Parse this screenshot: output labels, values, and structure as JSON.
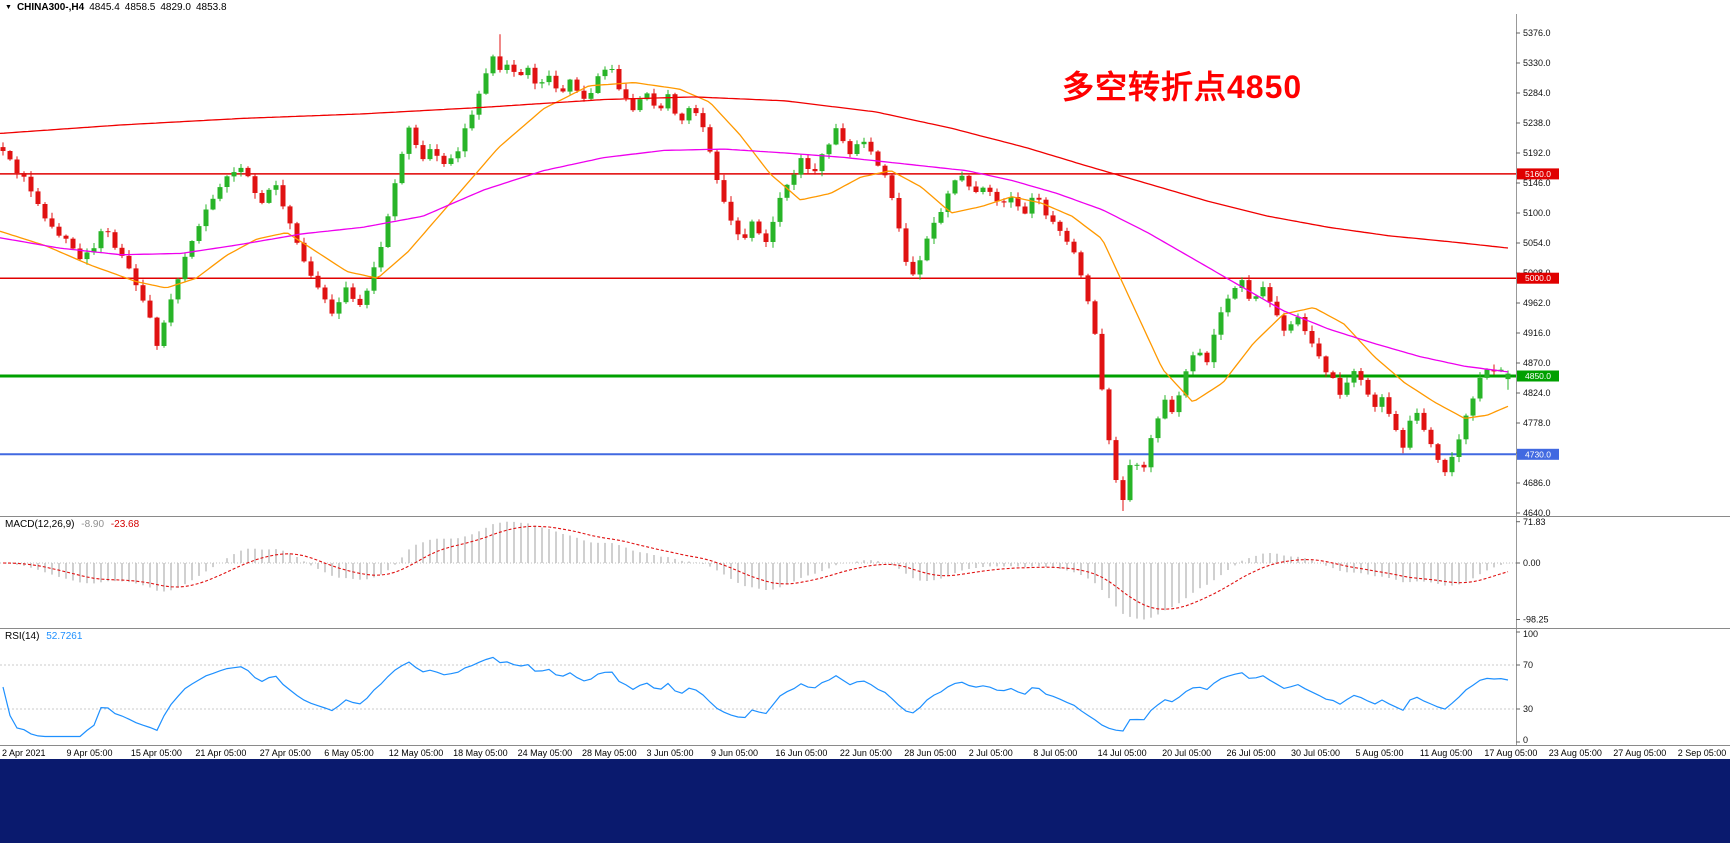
{
  "meta": {
    "background": "#ffffff",
    "taskbar_color": "#0a1a6e"
  },
  "header": {
    "dropdown_icon": "▼",
    "symbol": "CHINA300-,H4",
    "open": "4845.4",
    "high": "4858.5",
    "low": "4829.0",
    "close": "4853.8"
  },
  "annotation": {
    "text": "多空转折点4850",
    "color": "#ff0000"
  },
  "chart_data": {
    "type": "candlestick",
    "symbol": "CHINA300-",
    "timeframe": "H4",
    "current_bar": {
      "open": 4845.4,
      "high": 4858.5,
      "low": 4829.0,
      "close": 4853.8
    },
    "num_candles": 216,
    "up_color": "#28B428",
    "down_color": "#E01212",
    "price_axis": {
      "min": 4640.0,
      "max": 5376.0,
      "step": 46.0,
      "ticks": [
        "5376.0",
        "5330.0",
        "5284.0",
        "5238.0",
        "5192.0",
        "5146.0",
        "5100.0",
        "5054.0",
        "5008.0",
        "4962.0",
        "4916.0",
        "4870.0",
        "4824.0",
        "4778.0",
        "4732.0",
        "4686.0",
        "4640.0"
      ]
    },
    "horizontal_levels": [
      {
        "price": 5160.0,
        "label": "5160.0",
        "color": "#E00000",
        "line_width": 1.5
      },
      {
        "price": 5000.0,
        "label": "5000.0",
        "color": "#E00000",
        "line_width": 1.5
      },
      {
        "price": 4850.0,
        "label": "4850.0",
        "color": "#00A000",
        "line_width": 3
      },
      {
        "price": 4730.0,
        "label": "4730.0",
        "color": "#4169E1",
        "line_width": 2
      }
    ],
    "close_anchors": [
      [
        0.0,
        5195
      ],
      [
        0.01,
        5160
      ],
      [
        0.02,
        5135
      ],
      [
        0.03,
        5085
      ],
      [
        0.042,
        5060
      ],
      [
        0.052,
        5020
      ],
      [
        0.06,
        5050
      ],
      [
        0.068,
        5080
      ],
      [
        0.078,
        5035
      ],
      [
        0.088,
        4990
      ],
      [
        0.096,
        4950
      ],
      [
        0.103,
        4895
      ],
      [
        0.11,
        4950
      ],
      [
        0.12,
        5025
      ],
      [
        0.13,
        5080
      ],
      [
        0.14,
        5120
      ],
      [
        0.15,
        5160
      ],
      [
        0.16,
        5170
      ],
      [
        0.17,
        5110
      ],
      [
        0.18,
        5150
      ],
      [
        0.19,
        5090
      ],
      [
        0.2,
        5030
      ],
      [
        0.21,
        4980
      ],
      [
        0.22,
        4945
      ],
      [
        0.228,
        4990
      ],
      [
        0.236,
        4958
      ],
      [
        0.245,
        5000
      ],
      [
        0.255,
        5085
      ],
      [
        0.263,
        5175
      ],
      [
        0.27,
        5230
      ],
      [
        0.278,
        5185
      ],
      [
        0.286,
        5205
      ],
      [
        0.294,
        5165
      ],
      [
        0.302,
        5195
      ],
      [
        0.31,
        5245
      ],
      [
        0.318,
        5300
      ],
      [
        0.326,
        5345
      ],
      [
        0.331,
        5310
      ],
      [
        0.336,
        5340
      ],
      [
        0.342,
        5300
      ],
      [
        0.348,
        5330
      ],
      [
        0.355,
        5290
      ],
      [
        0.362,
        5320
      ],
      [
        0.37,
        5280
      ],
      [
        0.378,
        5305
      ],
      [
        0.386,
        5270
      ],
      [
        0.394,
        5300
      ],
      [
        0.402,
        5330
      ],
      [
        0.41,
        5290
      ],
      [
        0.418,
        5260
      ],
      [
        0.426,
        5290
      ],
      [
        0.434,
        5255
      ],
      [
        0.442,
        5280
      ],
      [
        0.45,
        5240
      ],
      [
        0.458,
        5265
      ],
      [
        0.466,
        5230
      ],
      [
        0.474,
        5160
      ],
      [
        0.482,
        5090
      ],
      [
        0.49,
        5055
      ],
      [
        0.498,
        5085
      ],
      [
        0.506,
        5055
      ],
      [
        0.514,
        5105
      ],
      [
        0.522,
        5150
      ],
      [
        0.53,
        5180
      ],
      [
        0.538,
        5160
      ],
      [
        0.546,
        5200
      ],
      [
        0.554,
        5230
      ],
      [
        0.562,
        5185
      ],
      [
        0.57,
        5210
      ],
      [
        0.578,
        5190
      ],
      [
        0.586,
        5155
      ],
      [
        0.594,
        5095
      ],
      [
        0.6,
        5030
      ],
      [
        0.606,
        5005
      ],
      [
        0.614,
        5060
      ],
      [
        0.622,
        5100
      ],
      [
        0.63,
        5145
      ],
      [
        0.638,
        5160
      ],
      [
        0.646,
        5125
      ],
      [
        0.654,
        5145
      ],
      [
        0.662,
        5105
      ],
      [
        0.67,
        5130
      ],
      [
        0.678,
        5100
      ],
      [
        0.686,
        5125
      ],
      [
        0.694,
        5095
      ],
      [
        0.702,
        5070
      ],
      [
        0.71,
        5045
      ],
      [
        0.718,
        5000
      ],
      [
        0.726,
        4905
      ],
      [
        0.732,
        4800
      ],
      [
        0.738,
        4705
      ],
      [
        0.744,
        4660
      ],
      [
        0.75,
        4730
      ],
      [
        0.757,
        4700
      ],
      [
        0.764,
        4762
      ],
      [
        0.772,
        4820
      ],
      [
        0.778,
        4790
      ],
      [
        0.785,
        4850
      ],
      [
        0.792,
        4895
      ],
      [
        0.799,
        4868
      ],
      [
        0.806,
        4930
      ],
      [
        0.815,
        4968
      ],
      [
        0.822,
        5000
      ],
      [
        0.83,
        4965
      ],
      [
        0.838,
        4990
      ],
      [
        0.845,
        4950
      ],
      [
        0.852,
        4920
      ],
      [
        0.86,
        4942
      ],
      [
        0.868,
        4902
      ],
      [
        0.875,
        4872
      ],
      [
        0.882,
        4850
      ],
      [
        0.889,
        4820
      ],
      [
        0.896,
        4858
      ],
      [
        0.903,
        4838
      ],
      [
        0.91,
        4800
      ],
      [
        0.917,
        4822
      ],
      [
        0.924,
        4778
      ],
      [
        0.93,
        4740
      ],
      [
        0.937,
        4800
      ],
      [
        0.944,
        4772
      ],
      [
        0.951,
        4742
      ],
      [
        0.958,
        4700
      ],
      [
        0.965,
        4735
      ],
      [
        0.972,
        4790
      ],
      [
        0.98,
        4840
      ],
      [
        0.988,
        4862
      ],
      [
        1.0,
        4853.8
      ]
    ],
    "moving_averages": [
      {
        "name": "ma-fast-orange",
        "color": "#FF9900",
        "anchors": [
          [
            0,
            5072
          ],
          [
            0.03,
            5050
          ],
          [
            0.06,
            5020
          ],
          [
            0.09,
            4995
          ],
          [
            0.11,
            4985
          ],
          [
            0.13,
            5000
          ],
          [
            0.15,
            5035
          ],
          [
            0.17,
            5060
          ],
          [
            0.19,
            5070
          ],
          [
            0.21,
            5040
          ],
          [
            0.23,
            5010
          ],
          [
            0.25,
            5000
          ],
          [
            0.27,
            5040
          ],
          [
            0.3,
            5120
          ],
          [
            0.33,
            5200
          ],
          [
            0.36,
            5260
          ],
          [
            0.39,
            5295
          ],
          [
            0.42,
            5300
          ],
          [
            0.45,
            5290
          ],
          [
            0.47,
            5270
          ],
          [
            0.49,
            5220
          ],
          [
            0.51,
            5160
          ],
          [
            0.53,
            5120
          ],
          [
            0.55,
            5130
          ],
          [
            0.57,
            5155
          ],
          [
            0.59,
            5165
          ],
          [
            0.61,
            5140
          ],
          [
            0.63,
            5100
          ],
          [
            0.65,
            5110
          ],
          [
            0.67,
            5125
          ],
          [
            0.69,
            5115
          ],
          [
            0.71,
            5095
          ],
          [
            0.73,
            5060
          ],
          [
            0.75,
            4960
          ],
          [
            0.77,
            4860
          ],
          [
            0.79,
            4810
          ],
          [
            0.81,
            4840
          ],
          [
            0.83,
            4900
          ],
          [
            0.85,
            4945
          ],
          [
            0.87,
            4955
          ],
          [
            0.89,
            4930
          ],
          [
            0.91,
            4880
          ],
          [
            0.93,
            4840
          ],
          [
            0.95,
            4810
          ],
          [
            0.97,
            4785
          ],
          [
            0.985,
            4790
          ],
          [
            1,
            4805
          ]
        ]
      },
      {
        "name": "ma-mid-magenta",
        "color": "#EE00EE",
        "anchors": [
          [
            0,
            5062
          ],
          [
            0.04,
            5046
          ],
          [
            0.08,
            5036
          ],
          [
            0.12,
            5038
          ],
          [
            0.16,
            5052
          ],
          [
            0.2,
            5068
          ],
          [
            0.24,
            5078
          ],
          [
            0.28,
            5095
          ],
          [
            0.32,
            5135
          ],
          [
            0.36,
            5165
          ],
          [
            0.4,
            5185
          ],
          [
            0.44,
            5196
          ],
          [
            0.48,
            5198
          ],
          [
            0.52,
            5192
          ],
          [
            0.56,
            5185
          ],
          [
            0.6,
            5175
          ],
          [
            0.64,
            5165
          ],
          [
            0.67,
            5150
          ],
          [
            0.7,
            5130
          ],
          [
            0.73,
            5105
          ],
          [
            0.76,
            5070
          ],
          [
            0.79,
            5030
          ],
          [
            0.82,
            4990
          ],
          [
            0.85,
            4950
          ],
          [
            0.88,
            4922
          ],
          [
            0.91,
            4900
          ],
          [
            0.94,
            4880
          ],
          [
            0.97,
            4865
          ],
          [
            1,
            4856
          ]
        ]
      },
      {
        "name": "ma-slow-red",
        "color": "#F00000",
        "anchors": [
          [
            0,
            5222
          ],
          [
            0.08,
            5235
          ],
          [
            0.16,
            5245
          ],
          [
            0.24,
            5252
          ],
          [
            0.32,
            5262
          ],
          [
            0.4,
            5274
          ],
          [
            0.46,
            5278
          ],
          [
            0.52,
            5272
          ],
          [
            0.58,
            5255
          ],
          [
            0.63,
            5230
          ],
          [
            0.68,
            5200
          ],
          [
            0.72,
            5172
          ],
          [
            0.76,
            5145
          ],
          [
            0.8,
            5118
          ],
          [
            0.84,
            5095
          ],
          [
            0.88,
            5078
          ],
          [
            0.92,
            5065
          ],
          [
            0.96,
            5056
          ],
          [
            1,
            5046
          ]
        ]
      }
    ],
    "macd": {
      "title": "MACD(12,26,9)",
      "value": "-8.90",
      "signal": "-23.68",
      "params": [
        12,
        26,
        9
      ],
      "axis_ticks": [
        "71.83",
        "0.00",
        "-98.25"
      ],
      "axis_max": 71.83,
      "axis_min": -98.25,
      "histogram_color": "#C0C0C0",
      "signal_color": "#E01212"
    },
    "rsi": {
      "title": "RSI(14)",
      "value": "52.7261",
      "period": 14,
      "axis_ticks": [
        "100",
        "70",
        "30",
        "0"
      ],
      "levels": [
        70,
        30
      ],
      "line_color": "#1E90FF"
    },
    "time_labels": [
      "2 Apr 2021",
      "9 Apr 05:00",
      "15 Apr 05:00",
      "21 Apr 05:00",
      "27 Apr 05:00",
      "6 May 05:00",
      "12 May 05:00",
      "18 May 05:00",
      "24 May 05:00",
      "28 May 05:00",
      "3 Jun 05:00",
      "9 Jun 05:00",
      "16 Jun 05:00",
      "22 Jun 05:00",
      "28 Jun 05:00",
      "2 Jul 05:00",
      "8 Jul 05:00",
      "14 Jul 05:00",
      "20 Jul 05:00",
      "26 Jul 05:00",
      "30 Jul 05:00",
      "5 Aug 05:00",
      "11 Aug 05:00",
      "17 Aug 05:00",
      "23 Aug 05:00",
      "27 Aug 05:00",
      "2 Sep 05:00"
    ]
  }
}
